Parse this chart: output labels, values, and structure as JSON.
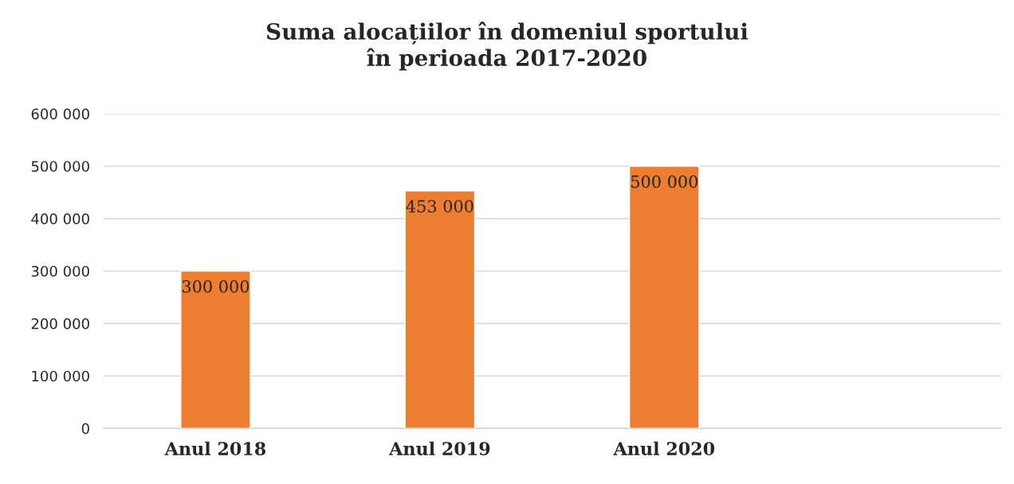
{
  "chart_data": {
    "type": "bar",
    "title": "Suma alocațiilor în domeniul sportului\nîn perioada 2017-2020",
    "categories": [
      "Anul 2018",
      "Anul 2019",
      "Anul 2020",
      null
    ],
    "values": [
      300000,
      453000,
      500000,
      null
    ],
    "value_labels": [
      "300 000",
      "453 000",
      "500 000",
      null
    ],
    "color": "#ed7d31",
    "ylim": [
      0,
      600000
    ],
    "yticks": [
      {
        "value": 0,
        "label": "0"
      },
      {
        "value": 100000,
        "label": "100 000"
      },
      {
        "value": 200000,
        "label": "200 000"
      },
      {
        "value": 300000,
        "label": "300 000"
      },
      {
        "value": 400000,
        "label": "400 000"
      },
      {
        "value": 500000,
        "label": "500 000"
      },
      {
        "value": 600000,
        "label": "600 000"
      }
    ],
    "grid": "y"
  }
}
